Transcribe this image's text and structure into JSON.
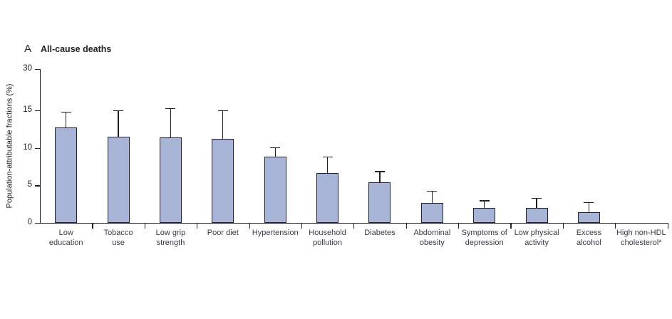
{
  "figure": {
    "panel_label": "A",
    "title": "All-cause deaths"
  },
  "chart_data": {
    "type": "bar",
    "panel_label": "A",
    "title": "All-cause deaths",
    "xlabel": "",
    "ylabel": "Population-attributable fractions (%)",
    "ylim": [
      0,
      30
    ],
    "yticks": [
      0,
      5,
      10,
      15,
      30
    ],
    "axis_break": {
      "linear_segment_max": 15,
      "compressed_top_value": 30
    },
    "grid": false,
    "legend": false,
    "error_bars": "upper only",
    "bar_color": "#a7b4d6",
    "bar_border_color": "#232135",
    "axis_color": "#231f20",
    "categories": [
      "Low education",
      "Tobacco use",
      "Low grip strength",
      "Poor diet",
      "Hypertension",
      "Household pollution",
      "Diabetes",
      "Abdominal obesity",
      "Symptoms of depression",
      "Low physical activity",
      "Excess alcohol",
      "High non-HDL cholesterol*"
    ],
    "category_label_lines": [
      [
        "Low",
        "education"
      ],
      [
        "Tobacco",
        "use"
      ],
      [
        "Low grip",
        "strength"
      ],
      [
        "Poor diet"
      ],
      [
        "Hypertension"
      ],
      [
        "Household",
        "pollution"
      ],
      [
        "Diabetes"
      ],
      [
        "Abdominal",
        "obesity"
      ],
      [
        "Symptoms of",
        "depression"
      ],
      [
        "Low physical",
        "activity"
      ],
      [
        "Excess",
        "alcohol"
      ],
      [
        "High non-HDL",
        "cholesterol*"
      ]
    ],
    "values": [
      12.7,
      11.5,
      11.4,
      11.2,
      8.8,
      6.6,
      5.4,
      2.7,
      2.0,
      2.0,
      1.4,
      0
    ],
    "upper_ci": [
      14.8,
      15.0,
      15.9,
      15.0,
      10.1,
      8.8,
      6.9,
      4.3,
      3.0,
      3.3,
      2.8,
      0
    ]
  }
}
